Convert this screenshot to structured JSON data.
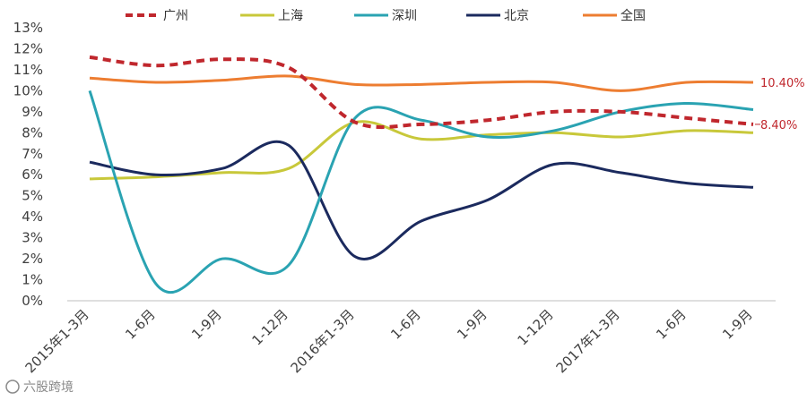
{
  "chart_data": {
    "type": "line",
    "categories": [
      "2015年1-3月",
      "1-6月",
      "1-9月",
      "1-12月",
      "2016年1-3月",
      "1-6月",
      "1-9月",
      "1-12月",
      "2017年1-3月",
      "1-6月",
      "1-9月"
    ],
    "y_tick_labels": [
      "0%",
      "1%",
      "2%",
      "3%",
      "4%",
      "5%",
      "6%",
      "7%",
      "8%",
      "9%",
      "10%",
      "11%",
      "12%",
      "13%"
    ],
    "ylim": [
      0,
      13
    ],
    "grid": false,
    "legend_position": "top",
    "series": [
      {
        "name": "广州",
        "color": "#c0272d",
        "dashed": true,
        "values": [
          11.6,
          11.2,
          11.5,
          11.1,
          8.5,
          8.4,
          8.6,
          9.0,
          9.0,
          8.7,
          8.4
        ]
      },
      {
        "name": "上海",
        "color": "#c8c83a",
        "dashed": false,
        "values": [
          5.8,
          5.9,
          6.1,
          6.3,
          8.5,
          7.7,
          7.9,
          8.0,
          7.8,
          8.1,
          8.0
        ]
      },
      {
        "name": "深圳",
        "color": "#2aa3b2",
        "dashed": false,
        "values": [
          10.0,
          0.8,
          2.0,
          1.7,
          8.7,
          8.6,
          7.8,
          8.1,
          9.0,
          9.4,
          9.1
        ]
      },
      {
        "name": "北京",
        "color": "#1b2a5e",
        "dashed": false,
        "values": [
          6.6,
          6.0,
          6.3,
          7.4,
          2.1,
          3.8,
          4.8,
          6.5,
          6.1,
          5.6,
          5.4
        ]
      },
      {
        "name": "全国",
        "color": "#ed7d31",
        "dashed": false,
        "values": [
          10.6,
          10.4,
          10.5,
          10.7,
          10.3,
          10.3,
          10.4,
          10.4,
          10.0,
          10.4,
          10.4
        ]
      }
    ],
    "end_labels": [
      {
        "text": "10.40%",
        "color": "#c0272d",
        "series": "全国"
      },
      {
        "text": "8.40%",
        "color": "#c0272d",
        "series": "广州"
      }
    ],
    "watermark": "六股跨境"
  }
}
